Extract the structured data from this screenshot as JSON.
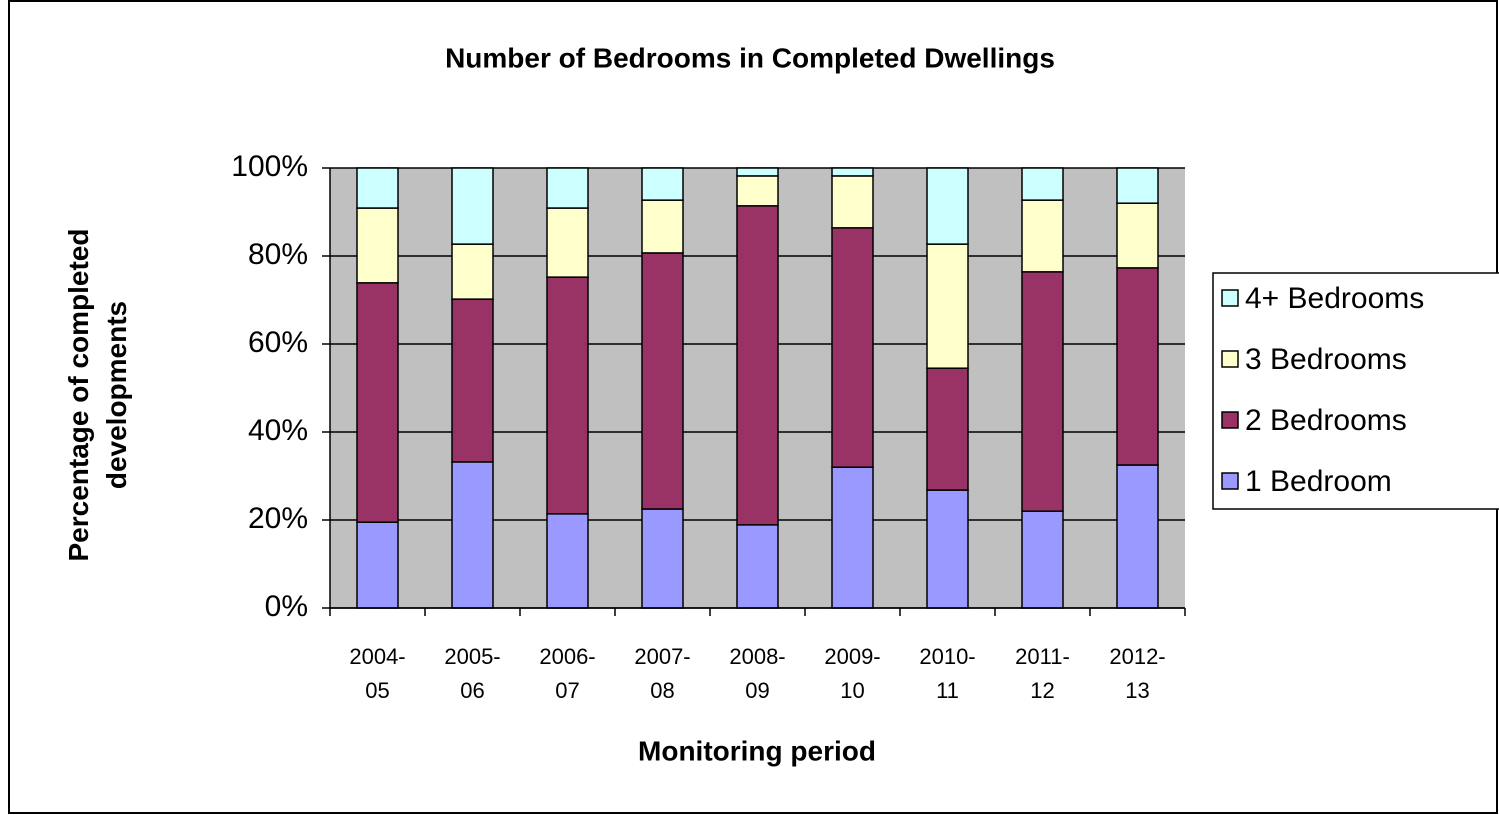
{
  "chart_data": {
    "type": "stacked_bar",
    "title": "Number of Bedrooms in Completed Dwellings",
    "x_label": "Monitoring period",
    "y_label": "Percentage of completed developments",
    "categories": [
      "2004-05",
      "2005-06",
      "2006-07",
      "2007-08",
      "2008-09",
      "2009-10",
      "2010-11",
      "2011-12",
      "2012-13"
    ],
    "series": [
      {
        "name": "1 Bedroom",
        "color": "#9999ff",
        "values": [
          19.5,
          33.2,
          21.4,
          22.5,
          18.9,
          32.0,
          26.8,
          22.0,
          32.5
        ]
      },
      {
        "name": "2 Bedrooms",
        "color": "#993366",
        "values": [
          54.4,
          37.0,
          53.8,
          58.2,
          72.5,
          54.4,
          27.7,
          54.4,
          44.8
        ]
      },
      {
        "name": "3 Bedrooms",
        "color": "#ffffcc",
        "values": [
          17.0,
          12.5,
          15.7,
          12.0,
          6.8,
          11.8,
          28.2,
          16.3,
          14.7
        ]
      },
      {
        "name": "4+ Bedrooms",
        "color": "#ccffff",
        "values": [
          9.1,
          17.3,
          9.1,
          7.3,
          1.8,
          1.8,
          17.3,
          7.3,
          8.0
        ]
      }
    ],
    "ylim": [
      0,
      100
    ],
    "yticks": [
      {
        "value": 0,
        "label": "0%"
      },
      {
        "value": 20,
        "label": "20%"
      },
      {
        "value": 40,
        "label": "40%"
      },
      {
        "value": 60,
        "label": "60%"
      },
      {
        "value": 80,
        "label": "80%"
      },
      {
        "value": 100,
        "label": "100%"
      }
    ],
    "grid": true,
    "legend": "right"
  }
}
